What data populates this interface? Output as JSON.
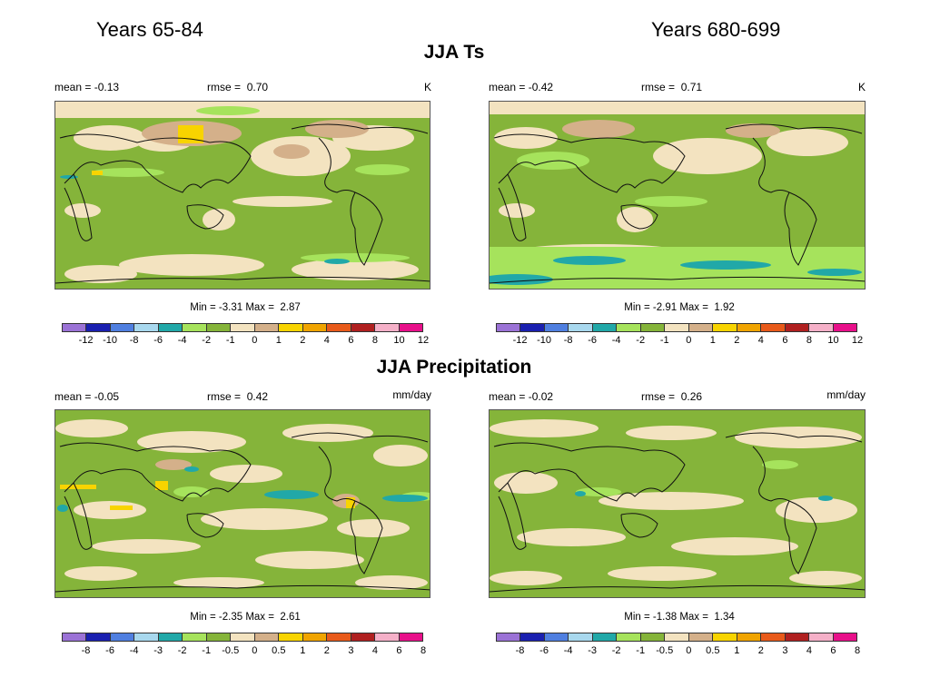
{
  "column_titles": [
    "Years 65-84",
    "Years 680-699"
  ],
  "sections": [
    {
      "title": "JJA Ts",
      "panels": [
        {
          "mean_label": "mean =",
          "mean": "-0.13",
          "rmse_label": "rmse =",
          "rmse": "0.70",
          "unit": "K",
          "min_label": "Min =",
          "min": "-3.31",
          "max_label": "Max =",
          "max": "2.87"
        },
        {
          "mean_label": "mean =",
          "mean": "-0.42",
          "rmse_label": "rmse =",
          "rmse": "0.71",
          "unit": "K",
          "min_label": "Min =",
          "min": "-2.91",
          "max_label": "Max =",
          "max": "1.92"
        }
      ],
      "colorbar_ticks": [
        "-12",
        "-10",
        "-8",
        "-6",
        "-4",
        "-2",
        "-1",
        "0",
        "1",
        "2",
        "4",
        "6",
        "8",
        "10",
        "12"
      ]
    },
    {
      "title": "JJA Precipitation",
      "panels": [
        {
          "mean_label": "mean =",
          "mean": "-0.05",
          "rmse_label": "rmse =",
          "rmse": "0.42",
          "unit": "mm/day",
          "min_label": "Min =",
          "min": "-2.35",
          "max_label": "Max =",
          "max": "2.61"
        },
        {
          "mean_label": "mean =",
          "mean": "-0.02",
          "rmse_label": "rmse =",
          "rmse": "0.26",
          "unit": "mm/day",
          "min_label": "Min =",
          "min": "-1.38",
          "max_label": "Max =",
          "max": "1.34"
        }
      ],
      "colorbar_ticks": [
        "-8",
        "-6",
        "-4",
        "-3",
        "-2",
        "-1",
        "-0.5",
        "0",
        "0.5",
        "1",
        "2",
        "3",
        "4",
        "6",
        "8"
      ]
    }
  ],
  "colorbar_colors": [
    "#9b72d6",
    "#1a20b0",
    "#4f7fe0",
    "#a8d8ee",
    "#21a8a8",
    "#a6e35c",
    "#85b43a",
    "#f3e3c0",
    "#d4b08a",
    "#f8d400",
    "#f0a400",
    "#e85a1a",
    "#b02020",
    "#f5b0c8",
    "#e8108a"
  ]
}
